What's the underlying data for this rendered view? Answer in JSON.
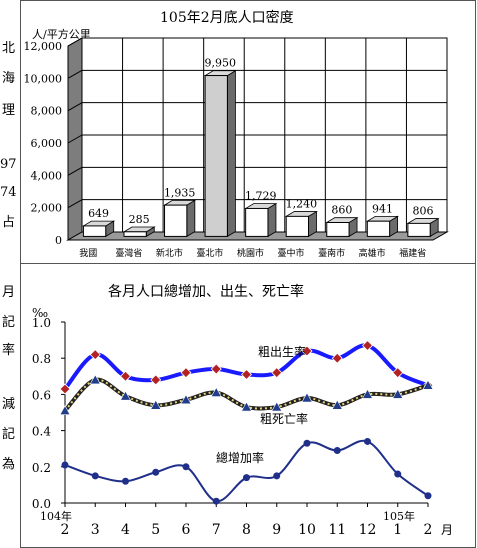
{
  "side_text": [
    "北",
    "海",
    "理",
    "97",
    "74",
    "占",
    "月",
    "記",
    "率",
    "減",
    "記",
    "為"
  ],
  "chart_data": [
    {
      "type": "bar",
      "title": "105年2月底人口密度",
      "ylabel": "人/平方公里",
      "ylim": [
        0,
        12000
      ],
      "yticks": [
        "0",
        "2,000",
        "4,000",
        "6,000",
        "8,000",
        "10,000",
        "12,000"
      ],
      "categories": [
        "我國",
        "臺灣省",
        "新北市",
        "臺北市",
        "桃園市",
        "臺中市",
        "臺南市",
        "高雄市",
        "福建省"
      ],
      "values": [
        649,
        285,
        1935,
        9950,
        1729,
        1240,
        860,
        941,
        806
      ],
      "value_labels": [
        "649",
        "285",
        "1,935",
        "9,950",
        "1,729",
        "1,240",
        "860",
        "941",
        "806"
      ],
      "colors": {
        "bar_face": "#ffffff",
        "highlight_face": "#cfcfcf",
        "floor": "#9a9a9a",
        "wall": "#ffffff"
      }
    },
    {
      "type": "line",
      "title": "各月人口總增加、出生、死亡率",
      "ylabel": "‰",
      "xlabel": "月",
      "ylim": [
        0.0,
        1.0
      ],
      "yticks": [
        "0.0",
        "0.2",
        "0.4",
        "0.6",
        "0.8",
        "1.0"
      ],
      "x": [
        "2",
        "3",
        "4",
        "5",
        "6",
        "7",
        "8",
        "9",
        "10",
        "11",
        "12",
        "1",
        "2"
      ],
      "year_labels": {
        "first": "104年",
        "second": "105年"
      },
      "series": [
        {
          "name": "粗出生率",
          "color": "#1a1aff",
          "marker_color": "#b22222",
          "values": [
            0.63,
            0.82,
            0.7,
            0.68,
            0.72,
            0.74,
            0.71,
            0.72,
            0.84,
            0.8,
            0.87,
            0.72,
            0.65
          ]
        },
        {
          "name": "粗死亡率",
          "color": "#333333",
          "marker_color": "#1f3d8a",
          "values": [
            0.51,
            0.68,
            0.59,
            0.54,
            0.57,
            0.61,
            0.53,
            0.53,
            0.58,
            0.54,
            0.6,
            0.6,
            0.65
          ]
        },
        {
          "name": "總增加率",
          "color": "#1f2f8a",
          "marker_color": "#1f2f8a",
          "values": [
            0.21,
            0.15,
            0.12,
            0.17,
            0.2,
            0.01,
            0.14,
            0.15,
            0.33,
            0.29,
            0.34,
            0.16,
            0.04
          ]
        }
      ]
    }
  ]
}
